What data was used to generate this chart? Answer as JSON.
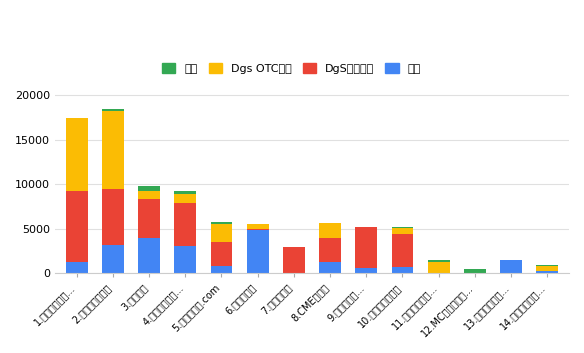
{
  "categories": [
    "1.ヤクマッチ薬...",
    "2.マイナビ薬剤師",
    "3.薬キャリ",
    "4.ファルマスタ...",
    "5.薬剤師求人.com",
    "6.ファゲット",
    "7.お仕事ラボ",
    "8.CME薬剤師",
    "9.アフロ・ド...",
    "10.リクナビ薬剤師",
    "11.薬剤師ベスト...",
    "12.MC・ファーマ...",
    "13.病院薬剤師ド...",
    "14.ジョブデポ薬..."
  ],
  "series": {
    "病院": [
      1200,
      3200,
      3900,
      3000,
      800,
      4900,
      0,
      1200,
      600,
      700,
      0,
      0,
      1500,
      200
    ],
    "DgS調剤併設": [
      8000,
      6300,
      4500,
      4900,
      2700,
      100,
      2900,
      2700,
      4600,
      3700,
      0,
      0,
      0,
      0
    ],
    "Dgs OTCのみ": [
      8300,
      8700,
      900,
      1000,
      2000,
      500,
      0,
      1700,
      0,
      700,
      1200,
      0,
      0,
      600
    ],
    "企業": [
      0,
      300,
      500,
      400,
      200,
      0,
      0,
      0,
      0,
      100,
      300,
      500,
      0,
      100
    ]
  },
  "colors": {
    "病院": "#4285f4",
    "DgS調剤併設": "#ea4335",
    "Dgs OTCのみ": "#fbbc04",
    "企業": "#33a853"
  },
  "stack_order": [
    "病院",
    "DgS調剤併設",
    "Dgs OTCのみ",
    "企業"
  ],
  "legend_order": [
    "企業",
    "Dgs OTCのみ",
    "DgS調剤併設",
    "病院"
  ],
  "ylim": [
    0,
    21000
  ],
  "yticks": [
    0,
    5000,
    10000,
    15000,
    20000
  ],
  "background_color": "#ffffff",
  "grid_color": "#e0e0e0"
}
